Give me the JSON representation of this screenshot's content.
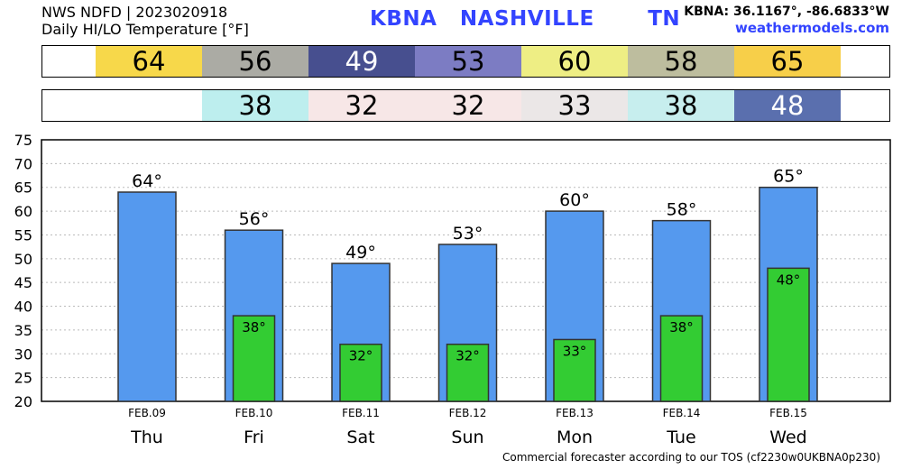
{
  "header": {
    "source": "NWS NDFD | 2023020918",
    "product": "Daily HI/LO Temperature [°F]",
    "station_title": "KBNA   NASHVILLE       TN",
    "coords": "KBNA: 36.1167°, -86.6833°W",
    "website": "weathermodels.com"
  },
  "high_strip": [
    {
      "text": "64",
      "color": "#f7d84a",
      "fg": "#000000"
    },
    {
      "text": "56",
      "color": "#ababa4",
      "fg": "#000000"
    },
    {
      "text": "49",
      "color": "#474f8f",
      "fg": "#ffffff"
    },
    {
      "text": "53",
      "color": "#7c7cc3",
      "fg": "#000000"
    },
    {
      "text": "60",
      "color": "#eeee84",
      "fg": "#000000"
    },
    {
      "text": "58",
      "color": "#bdbd9e",
      "fg": "#000000"
    },
    {
      "text": "65",
      "color": "#f7cf49",
      "fg": "#000000"
    }
  ],
  "low_strip": [
    {
      "text": "",
      "color": "#ffffff",
      "fg": "#000000"
    },
    {
      "text": "38",
      "color": "#bdeeee",
      "fg": "#000000"
    },
    {
      "text": "32",
      "color": "#f7e7e7",
      "fg": "#000000"
    },
    {
      "text": "32",
      "color": "#f7e7e7",
      "fg": "#000000"
    },
    {
      "text": "33",
      "color": "#ebe7e7",
      "fg": "#000000"
    },
    {
      "text": "38",
      "color": "#c7eeee",
      "fg": "#000000"
    },
    {
      "text": "48",
      "color": "#5a6fae",
      "fg": "#ffffff"
    }
  ],
  "chart_data": {
    "type": "bar",
    "categories": [
      "FEB.09",
      "FEB.10",
      "FEB.11",
      "FEB.12",
      "FEB.13",
      "FEB.14",
      "FEB.15"
    ],
    "day_labels": [
      "Thu",
      "Fri",
      "Sat",
      "Sun",
      "Mon",
      "Tue",
      "Wed"
    ],
    "series": [
      {
        "values": [
          64,
          56,
          49,
          53,
          60,
          58,
          65
        ],
        "color": "#5599ee",
        "labels": [
          "64°",
          "56°",
          "49°",
          "53°",
          "60°",
          "58°",
          "65°"
        ]
      },
      {
        "values": [
          null,
          38,
          32,
          32,
          33,
          38,
          48
        ],
        "color": "#33cc33",
        "labels": [
          "",
          "38°",
          "32°",
          "32°",
          "33°",
          "38°",
          "48°"
        ]
      }
    ],
    "ylim": [
      20,
      75
    ],
    "yticks": [
      20,
      25,
      30,
      35,
      40,
      45,
      50,
      55,
      60,
      65,
      70,
      75
    ],
    "grid": true
  },
  "footer": "Commercial forecaster according to our TOS (cf2230w0UKBNA0p230)"
}
